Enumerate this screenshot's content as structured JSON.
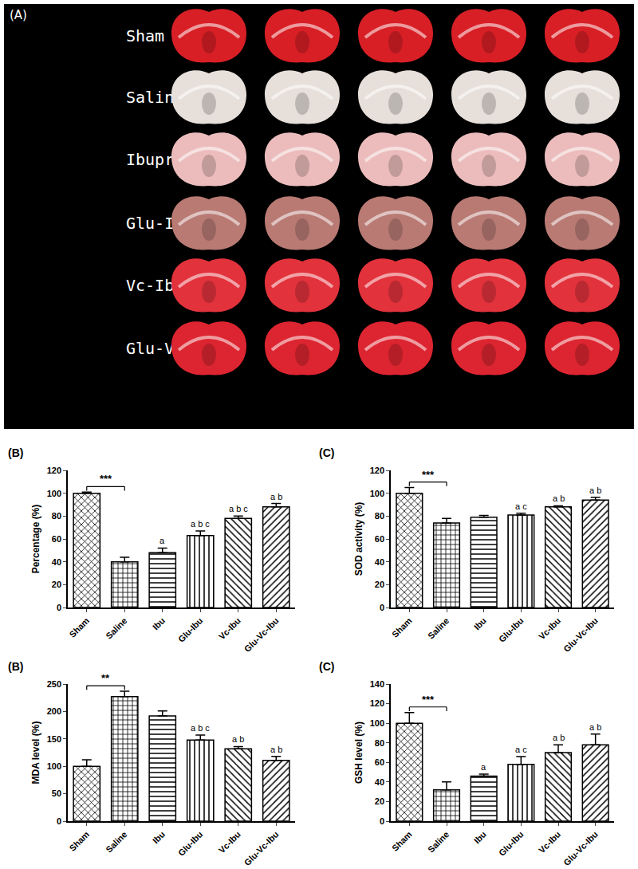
{
  "image_panel": {
    "label": "(A)",
    "rows": [
      {
        "name": "Sham",
        "color": "#d81f26",
        "count": 5
      },
      {
        "name": "Saline",
        "color": "#e6dfda",
        "count": 5
      },
      {
        "name": "Ibuprofen",
        "color": "#ecbcbc",
        "count": 5
      },
      {
        "name": "Glu-Ibu",
        "color": "#b97a74",
        "count": 5
      },
      {
        "name": "Vc-Ibu",
        "color": "#e2323c",
        "count": 5
      },
      {
        "name": "Glu-Vc-Ibu",
        "color": "#dc2530",
        "count": 5
      }
    ]
  },
  "chart_data": [
    {
      "type": "bar",
      "title": "(B)",
      "y_label": "Percentage (%)",
      "categories": [
        "Sham",
        "Saline",
        "Ibu",
        "Glu-Ibu",
        "Vc-Ibu",
        "Glu-Vc-Ibu"
      ],
      "values": [
        100,
        40,
        48,
        63,
        78,
        88
      ],
      "errors": [
        1,
        4,
        4,
        4,
        2,
        3
      ],
      "color": "#ffffff",
      "ylim": [
        0,
        120
      ],
      "yticks": [
        0,
        20,
        40,
        60,
        80,
        100,
        120
      ],
      "grid": false,
      "annotations": [
        {
          "from": "Sham",
          "to": "Saline",
          "text": "***"
        },
        {
          "category": "Ibu",
          "text": "a"
        },
        {
          "category": "Glu-Ibu",
          "text": "a b c"
        },
        {
          "category": "Vc-Ibu",
          "text": "a b c"
        },
        {
          "category": "Glu-Vc-Ibu",
          "text": "a b"
        }
      ]
    },
    {
      "type": "bar",
      "title": "(C)",
      "y_label": "SOD activity (%)",
      "categories": [
        "Sham",
        "Saline",
        "Ibu",
        "Glu-Ibu",
        "Vc-Ibu",
        "Glu-Vc-Ibu"
      ],
      "values": [
        100,
        74,
        79,
        81,
        88,
        94
      ],
      "errors": [
        5,
        4,
        1.5,
        1.5,
        1,
        2.5
      ],
      "color": "#ffffff",
      "ylim": [
        0,
        120
      ],
      "yticks": [
        0,
        20,
        40,
        60,
        80,
        100,
        120
      ],
      "grid": false,
      "annotations": [
        {
          "from": "Sham",
          "to": "Saline",
          "text": "***"
        },
        {
          "category": "Glu-Ibu",
          "text": "a c"
        },
        {
          "category": "Vc-Ibu",
          "text": "a b"
        },
        {
          "category": "Glu-Vc-Ibu",
          "text": "a b"
        }
      ]
    },
    {
      "type": "bar",
      "title": "(B)",
      "y_label": "MDA level (%)",
      "categories": [
        "Sham",
        "Saline",
        "Ibu",
        "Glu-Ibu",
        "Vc-Ibu",
        "Glu-Vc-Ibu"
      ],
      "values": [
        100,
        227,
        192,
        148,
        132,
        111
      ],
      "errors": [
        12,
        10,
        9,
        9,
        4,
        7
      ],
      "color": "#ffffff",
      "ylim": [
        0,
        250
      ],
      "yticks": [
        0,
        50,
        100,
        150,
        200,
        250
      ],
      "grid": false,
      "annotations": [
        {
          "from": "Sham",
          "to": "Saline",
          "text": "**"
        },
        {
          "category": "Glu-Ibu",
          "text": "a b c"
        },
        {
          "category": "Vc-Ibu",
          "text": "a b"
        },
        {
          "category": "Glu-Vc-Ibu",
          "text": "a b"
        }
      ]
    },
    {
      "type": "bar",
      "title": "(C)",
      "y_label": "GSH level (%)",
      "categories": [
        "Sham",
        "Saline",
        "Ibu",
        "Glu-Ibu",
        "Vc-Ibu",
        "Glu-Vc-Ibu"
      ],
      "values": [
        100,
        32,
        46,
        58,
        70,
        78
      ],
      "errors": [
        11,
        8,
        2,
        8,
        8,
        11
      ],
      "color": "#ffffff",
      "ylim": [
        0,
        140
      ],
      "yticks": [
        0,
        20,
        40,
        60,
        80,
        100,
        120,
        140
      ],
      "grid": false,
      "annotations": [
        {
          "from": "Sham",
          "to": "Saline",
          "text": "***"
        },
        {
          "category": "Ibu",
          "text": "a"
        },
        {
          "category": "Glu-Ibu",
          "text": "a c"
        },
        {
          "category": "Vc-Ibu",
          "text": "a b"
        },
        {
          "category": "Glu-Vc-Ibu",
          "text": "a b"
        }
      ]
    }
  ]
}
